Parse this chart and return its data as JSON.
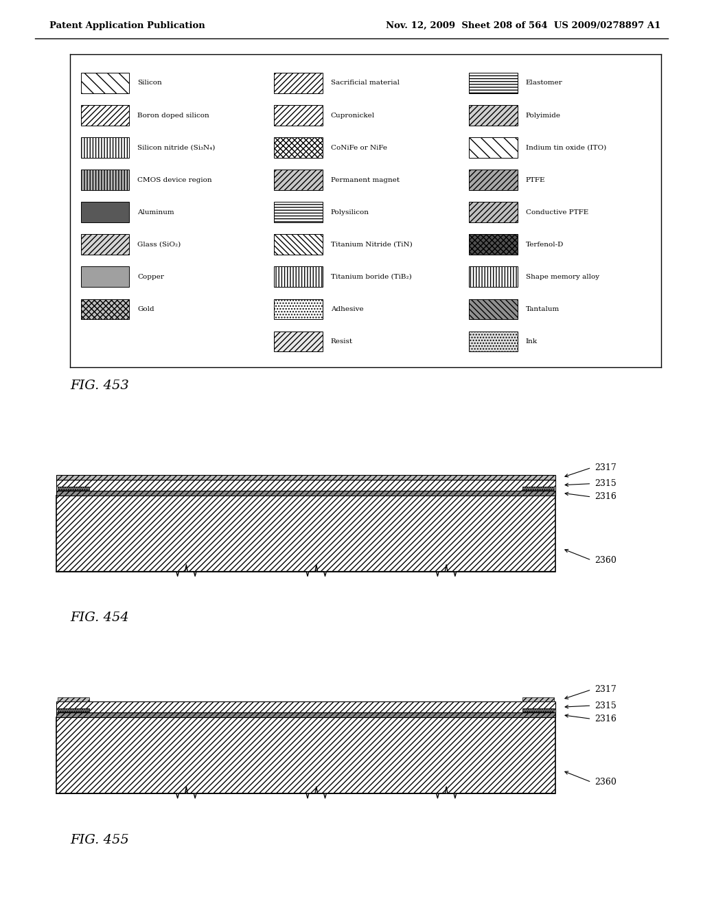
{
  "header_left": "Patent Application Publication",
  "header_right": "Nov. 12, 2009  Sheet 208 of 564  US 2009/0278897 A1",
  "fig453_label": "FIG. 453",
  "fig454_label": "FIG. 454",
  "fig455_label": "FIG. 455",
  "legend": {
    "col0": [
      {
        "label": "Silicon",
        "hatch": "\\\\",
        "fc": "white"
      },
      {
        "label": "Boron doped silicon",
        "hatch": "////",
        "fc": "white"
      },
      {
        "label": "Silicon nitride (Si₃N₄)",
        "hatch": "||||",
        "fc": "white"
      },
      {
        "label": "CMOS device region",
        "hatch": "||||",
        "fc": "#b8b8b8"
      },
      {
        "label": "Aluminum",
        "hatch": "",
        "fc": "#585858"
      },
      {
        "label": "Glass (SiO₂)",
        "hatch": "////",
        "fc": "#d5d5d5"
      },
      {
        "label": "Copper",
        "hatch": "",
        "fc": "#a0a0a0"
      },
      {
        "label": "Gold",
        "hatch": "xxxx",
        "fc": "#c0c0c0"
      }
    ],
    "col1": [
      {
        "label": "Sacrificial material",
        "hatch": "////",
        "fc": "white"
      },
      {
        "label": "Cupronickel",
        "hatch": "////",
        "fc": "white"
      },
      {
        "label": "CoNiFe or NiFe",
        "hatch": "xxxx",
        "fc": "white"
      },
      {
        "label": "Permanent magnet",
        "hatch": "////",
        "fc": "#c8c8c8"
      },
      {
        "label": "Polysilicon",
        "hatch": "----",
        "fc": "white"
      },
      {
        "label": "Titanium Nitride (TiN)",
        "hatch": "\\\\\\\\",
        "fc": "white"
      },
      {
        "label": "Titanium boride (TiB₂)",
        "hatch": "||||",
        "fc": "white"
      },
      {
        "label": "Adhesive",
        "hatch": "....",
        "fc": "white"
      },
      {
        "label": "Resist",
        "hatch": "////",
        "fc": "#e8e8e8"
      }
    ],
    "col2": [
      {
        "label": "Elastomer",
        "hatch": "----",
        "fc": "white"
      },
      {
        "label": "Polyimide",
        "hatch": "////",
        "fc": "#d0d0d0"
      },
      {
        "label": "Indium tin oxide (ITO)",
        "hatch": "\\\\",
        "fc": "white"
      },
      {
        "label": "PTFE",
        "hatch": "////",
        "fc": "#a8a8a8"
      },
      {
        "label": "Conductive PTFE",
        "hatch": "////",
        "fc": "#c0c0c0"
      },
      {
        "label": "Terfenol-D",
        "hatch": "xxxx",
        "fc": "#505050"
      },
      {
        "label": "Shape memory alloy",
        "hatch": "||||",
        "fc": "white"
      },
      {
        "label": "Tantalum",
        "hatch": "\\\\\\\\",
        "fc": "#909090"
      },
      {
        "label": "Ink",
        "hatch": "....",
        "fc": "#e0e0e0"
      }
    ]
  }
}
